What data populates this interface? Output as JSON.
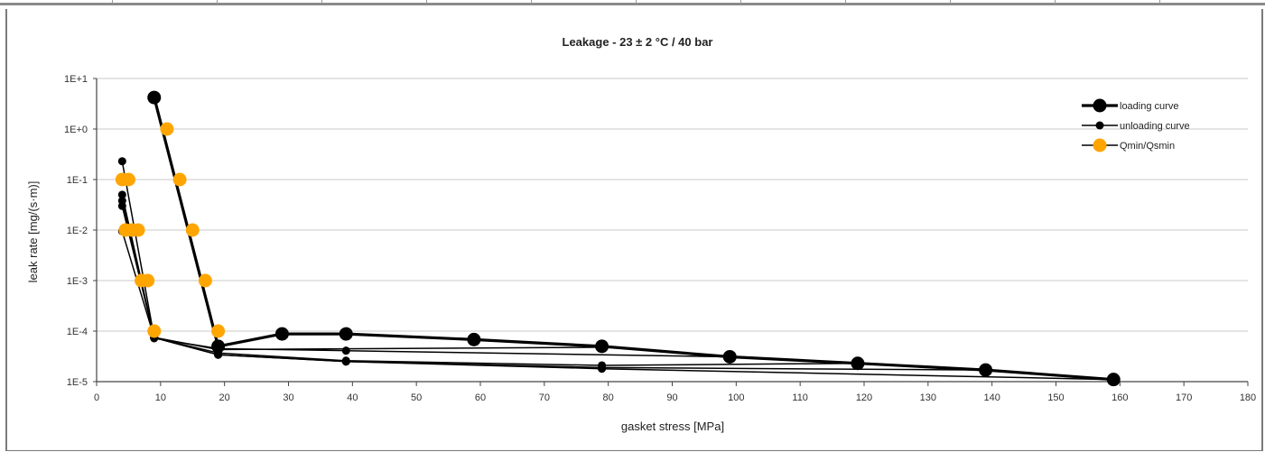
{
  "chart_data": {
    "type": "scatter",
    "title": "Leakage - 23 ± 2 °C / 40 bar",
    "xlabel": "gasket stress [MPa]",
    "ylabel": "leak rate [mg/(s·m)]",
    "xlim": [
      0,
      180
    ],
    "ylim": [
      1e-05,
      10
    ],
    "yscale": "log",
    "grid": "horizontal",
    "legend_position": "top-right",
    "x_ticks": [
      0,
      10,
      20,
      30,
      40,
      50,
      60,
      70,
      80,
      90,
      100,
      110,
      120,
      130,
      140,
      150,
      160,
      170,
      180
    ],
    "y_ticks": [
      {
        "value": 1e-05,
        "label": "1E-5"
      },
      {
        "value": 0.0001,
        "label": "1E-4"
      },
      {
        "value": 0.001,
        "label": "1E-3"
      },
      {
        "value": 0.01,
        "label": "1E-2"
      },
      {
        "value": 0.1,
        "label": "1E-1"
      },
      {
        "value": 1,
        "label": "1E+0"
      },
      {
        "value": 10,
        "label": "1E+1"
      }
    ],
    "series": [
      {
        "name": "loading curve",
        "color": "#000000",
        "style": "thick-line-large-marker",
        "x": [
          9,
          19,
          29,
          39,
          59,
          79,
          99,
          119,
          139,
          159
        ],
        "y": [
          4.2,
          5e-05,
          8.8e-05,
          8.8e-05,
          6.8e-05,
          5e-05,
          3.1e-05,
          2.3e-05,
          1.7e-05,
          1.1e-05
        ]
      },
      {
        "name": "unloading curve",
        "color": "#000000",
        "style": "thin-line-small-marker",
        "segments": [
          {
            "x": [
              79,
              19,
              9,
              4
            ],
            "y": [
              4.8e-05,
              4.3e-05,
              7.5e-05,
              0.03
            ]
          },
          {
            "x": [
              99,
              39,
              19,
              9,
              4
            ],
            "y": [
              3.1e-05,
              4.1e-05,
              4.5e-05,
              7.2e-05,
              0.05
            ]
          },
          {
            "x": [
              119,
              79,
              39,
              19,
              9,
              4
            ],
            "y": [
              2.3e-05,
              2.1e-05,
              2.6e-05,
              3.7e-05,
              7.4e-05,
              0.23
            ]
          },
          {
            "x": [
              139,
              79,
              39,
              19,
              9,
              4
            ],
            "y": [
              1.7e-05,
              1.9e-05,
              2.5e-05,
              3.4e-05,
              7.4e-05,
              0.0095
            ]
          },
          {
            "x": [
              159,
              79,
              39,
              19,
              9,
              4
            ],
            "y": [
              1.1e-05,
              1.8e-05,
              2.5e-05,
              3.4e-05,
              7.4e-05,
              0.038
            ]
          }
        ]
      },
      {
        "name": "Qmin/Qsmin",
        "color": "#FFA500",
        "style": "large-marker",
        "x": [
          19,
          17,
          15,
          13,
          11,
          9,
          8,
          7,
          6.5,
          5.5,
          5,
          4.5,
          4
        ],
        "y": [
          0.0001,
          0.001,
          0.01,
          0.1,
          1,
          0.0001,
          0.001,
          0.001,
          0.01,
          0.01,
          0.1,
          0.01,
          0.1
        ]
      }
    ]
  }
}
